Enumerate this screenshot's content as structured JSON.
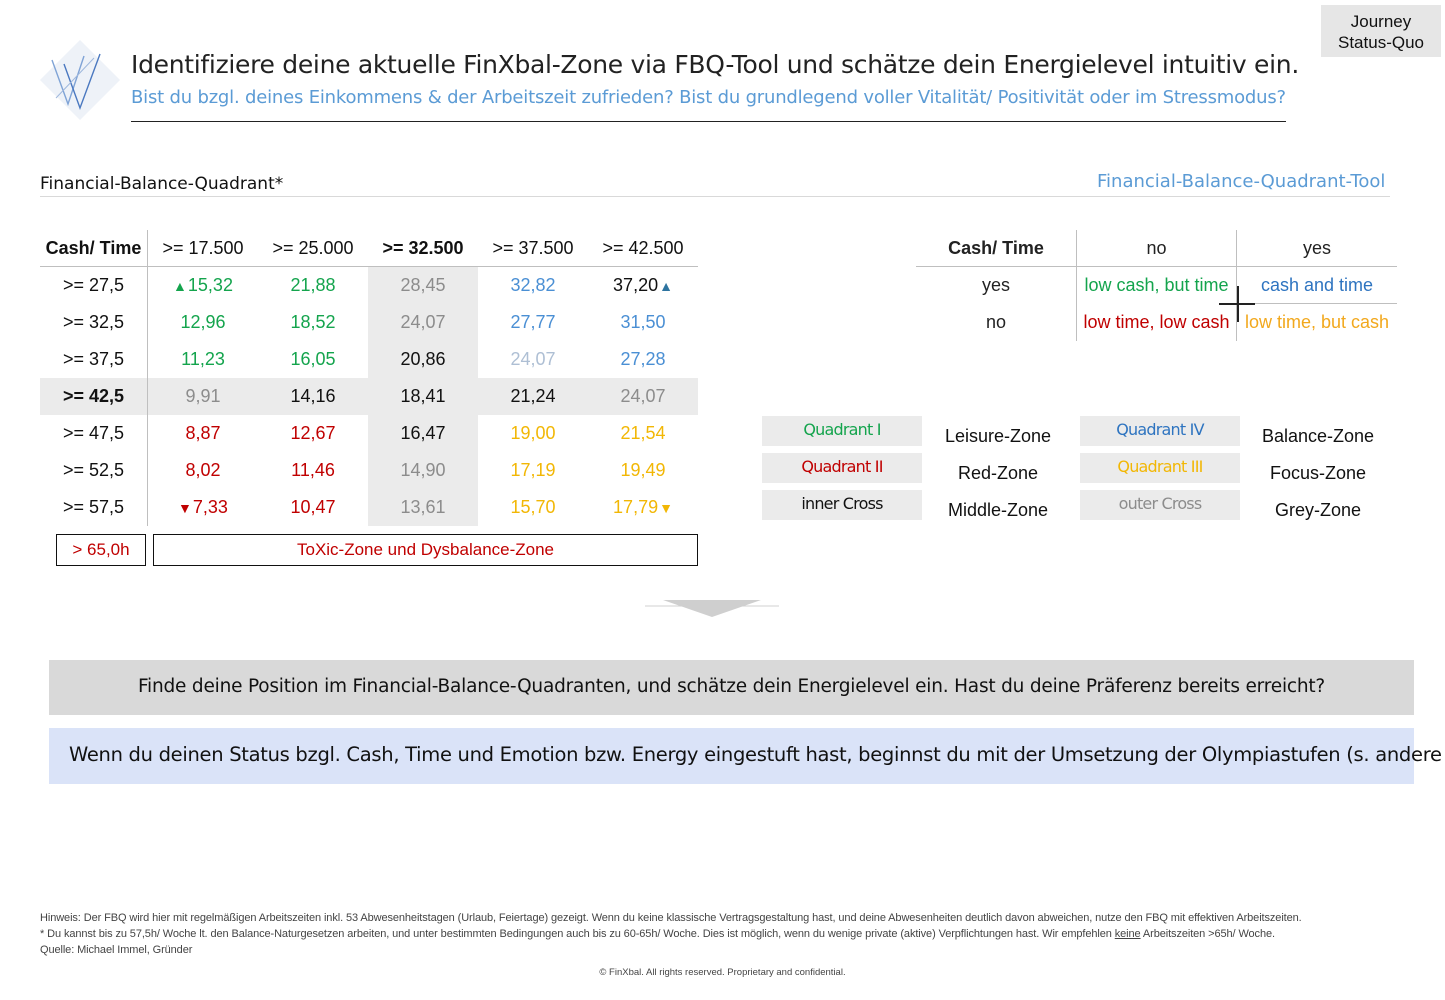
{
  "header": {
    "title": "Identifiziere deine aktuelle FinXbal-Zone via FBQ-Tool und schätze dein Energielevel intuitiv ein.",
    "subtitle": "Bist du bzgl. deines Einkommens & der Arbeitszeit zufrieden? Bist du grundlegend voller Vitalität/ Positivität oder im Stressmodus?",
    "badge_line1": "Journey",
    "badge_line2": "Status-Quo"
  },
  "section": {
    "left_title": "Financial-Balance-Quadrant*",
    "right_title": "Financial-Balance-Quadrant-Tool"
  },
  "fbq_table": {
    "corner": "Cash/ Time",
    "columns": [
      ">= 17.500",
      ">= 25.000",
      ">= 32.500",
      ">= 37.500",
      ">= 42.500"
    ],
    "rows": [
      {
        "label": ">= 27,5",
        "values": [
          "15,32",
          "21,88",
          "28,45",
          "32,82",
          "37,20"
        ]
      },
      {
        "label": ">= 32,5",
        "values": [
          "12,96",
          "18,52",
          "24,07",
          "27,77",
          "31,50"
        ]
      },
      {
        "label": ">= 37,5",
        "values": [
          "11,23",
          "16,05",
          "20,86",
          "24,07",
          "27,28"
        ]
      },
      {
        "label": ">= 42,5",
        "values": [
          "9,91",
          "14,16",
          "18,41",
          "21,24",
          "24,07"
        ]
      },
      {
        "label": ">= 47,5",
        "values": [
          "8,87",
          "12,67",
          "16,47",
          "19,00",
          "21,54"
        ]
      },
      {
        "label": ">= 52,5",
        "values": [
          "8,02",
          "11,46",
          "14,90",
          "17,19",
          "19,49"
        ]
      },
      {
        "label": ">= 57,5",
        "values": [
          "7,33",
          "10,47",
          "13,61",
          "15,70",
          "17,79"
        ]
      }
    ],
    "toxic_left": "> 65,0h",
    "toxic_right": "ToXic-Zone und Dysbalance-Zone"
  },
  "matrix": {
    "corner": "Cash/ Time",
    "col_no": "no",
    "col_yes": "yes",
    "row_yes": "yes",
    "row_no": "no",
    "yes_no": "low cash, but time",
    "yes_yes": "cash and time",
    "no_no": "low time, low cash",
    "no_yes": "low time, but cash"
  },
  "legend": {
    "q1": "Quadrant I",
    "q1_zone": "Leisure-Zone",
    "q2": "Quadrant II",
    "q2_zone": "Red-Zone",
    "inner": "inner Cross",
    "inner_zone": "Middle-Zone",
    "q4": "Quadrant IV",
    "q4_zone": "Balance-Zone",
    "q3": "Quadrant III",
    "q3_zone": "Focus-Zone",
    "outer": "outer Cross",
    "outer_zone": "Grey-Zone"
  },
  "boxes": {
    "grey": "Finde deine Position im Financial-Balance-Quadranten, und schätze dein Energielevel ein. Hast du deine Präferenz bereits erreicht?",
    "blue": "Wenn du deinen Status bzgl. Cash, Time und Emotion bzw. Energy eingestuft hast, beginnst du mit der Umsetzung der Olympiastufen (s. andere Tools)"
  },
  "notes": {
    "line1": "Hinweis: Der FBQ wird hier mit regelmäßigen Arbeitszeiten inkl. 53 Abwesenheitstagen (Urlaub, Feiertage) gezeigt. Wenn du keine klassische Vertragsgestaltung hast, und deine Abwesenheiten deutlich davon abweichen, nutze den FBQ mit effektiven Arbeitszeiten.",
    "line2_a": "* Du kannst bis zu 57,5h/ Woche lt. den Balance-Naturgesetzen arbeiten, und unter bestimmten Bedingungen auch bis zu 60-65h/ Woche. Dies ist möglich, wenn du wenige private (aktive) Verpflichtungen hast. Wir empfehlen ",
    "line2_u": "keine",
    "line2_b": " Arbeitszeiten >65h/ Woche.",
    "line3": "Quelle: Michael Immel, Gründer",
    "copyright": "© FinXbal. All rights reserved. Proprietary and confidential."
  }
}
